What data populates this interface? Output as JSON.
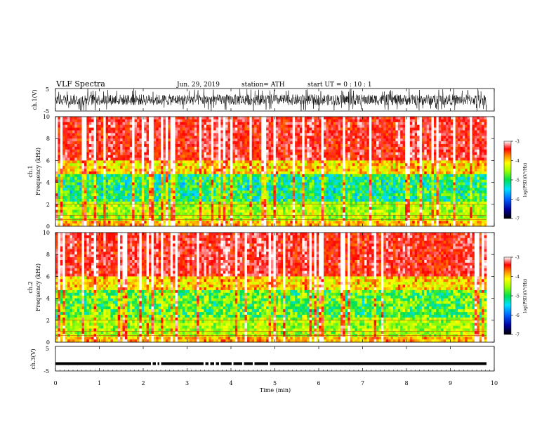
{
  "header": {
    "title": "VLF  Spectra",
    "date": "Jun. 29, 2019",
    "station": "station= ATH",
    "start_ut": "start  UT  =    0  : 10 : 1"
  },
  "chart_data": [
    {
      "id": "ch1-waveform",
      "type": "line",
      "ylabel": "ch.1(V)",
      "ylim": [
        -5,
        5
      ],
      "y_ticks": [
        "5",
        "-5"
      ],
      "xlim": [
        0,
        10
      ],
      "description_series": "noisy broadband waveform, amplitude roughly -3 to +3 V, occasional spikes near ±5 V"
    },
    {
      "id": "ch1-spectrogram",
      "type": "heatmap",
      "channel_label": "ch.1",
      "ylabel": "Frequency  (kHz)",
      "ylim": [
        0,
        10
      ],
      "y_ticks": [
        "0",
        "2",
        "4",
        "6",
        "8",
        "10"
      ],
      "xlim": [
        0,
        10
      ],
      "colorbar": {
        "label": "log(PSD)(V²/Hz)",
        "range": [
          -7,
          -3
        ],
        "ticks": [
          "-3",
          "-4",
          "-5",
          "-6",
          "-7"
        ]
      }
    },
    {
      "id": "ch2-spectrogram",
      "type": "heatmap",
      "channel_label": "ch.2",
      "ylabel": "Frequency  (kHz)",
      "ylim": [
        0,
        10
      ],
      "y_ticks": [
        "0",
        "2",
        "4",
        "6",
        "8",
        "10"
      ],
      "xlim": [
        0,
        10
      ],
      "colorbar": {
        "label": "log(PSD)(V²/Hz)",
        "range": [
          -7,
          -3
        ],
        "ticks": [
          "-3",
          "-4",
          "-5",
          "-6",
          "-7"
        ]
      }
    },
    {
      "id": "ch3-waveform",
      "type": "line",
      "ylabel": "ch.3(V)",
      "ylim": [
        -5,
        5
      ],
      "y_ticks": [
        "5",
        "-5"
      ],
      "xlim": [
        0,
        10
      ],
      "level": -2
    }
  ],
  "x_axis": {
    "label": "Time  (min)",
    "ticks": [
      "0",
      "1",
      "2",
      "3",
      "4",
      "5",
      "6",
      "7",
      "8",
      "9",
      "10"
    ]
  }
}
